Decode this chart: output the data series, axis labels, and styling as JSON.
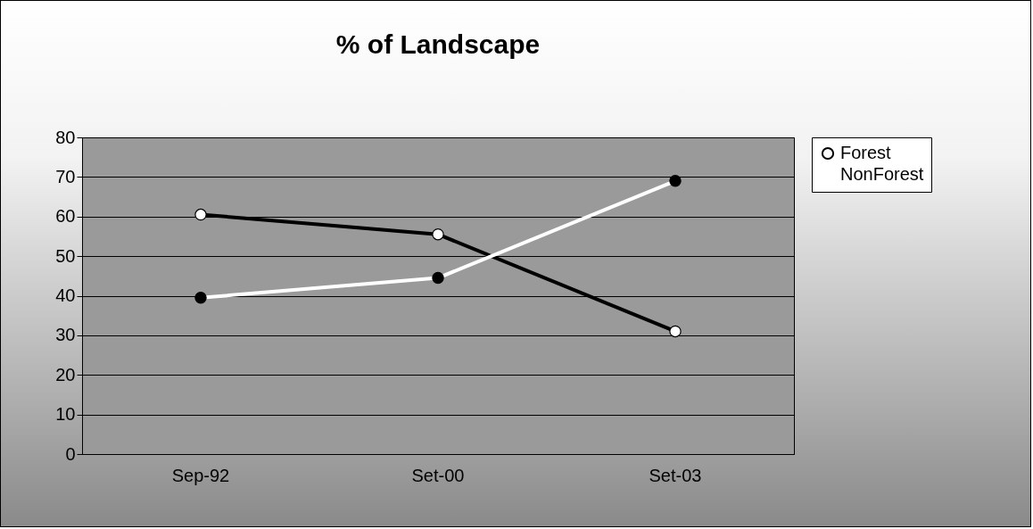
{
  "chart_data": {
    "type": "line",
    "title": "% of Landscape",
    "categories": [
      "Sep-92",
      "Set-00",
      "Set-03"
    ],
    "series": [
      {
        "name": "Forest",
        "color": "#000000",
        "values": [
          60.5,
          55.5,
          31
        ]
      },
      {
        "name": "NonForest",
        "color": "#ffffff",
        "values": [
          39.5,
          44.5,
          69
        ]
      }
    ],
    "ylim": [
      0,
      80
    ],
    "yticks": [
      0,
      10,
      20,
      30,
      40,
      50,
      60,
      70,
      80
    ],
    "grid": "y",
    "legend": "right",
    "marker": "circle"
  }
}
